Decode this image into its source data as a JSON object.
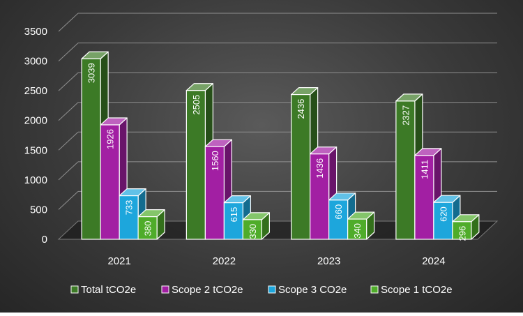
{
  "chart_data": {
    "type": "bar",
    "title": "",
    "xlabel": "",
    "ylabel": "",
    "categories": [
      "2021",
      "2022",
      "2023",
      "2024"
    ],
    "ylim": [
      0,
      3500
    ],
    "yticks": [
      0,
      500,
      1000,
      1500,
      2000,
      2500,
      3000,
      3500
    ],
    "grid": true,
    "legend_position": "bottom",
    "three_d": true,
    "series": [
      {
        "name": "Total tCO2e",
        "values": [
          3039,
          2505,
          2436,
          2327
        ],
        "color": "#3c7a26"
      },
      {
        "name": "Scope 2 tCO2e",
        "values": [
          1926,
          1560,
          1436,
          1411
        ],
        "color": "#a21fa3"
      },
      {
        "name": "Scope 3 CO2e",
        "values": [
          733,
          615,
          660,
          620
        ],
        "color": "#1da6dc"
      },
      {
        "name": "Scope 1 tCO2e",
        "values": [
          380,
          330,
          340,
          296
        ],
        "color": "#4fac2a"
      }
    ]
  }
}
